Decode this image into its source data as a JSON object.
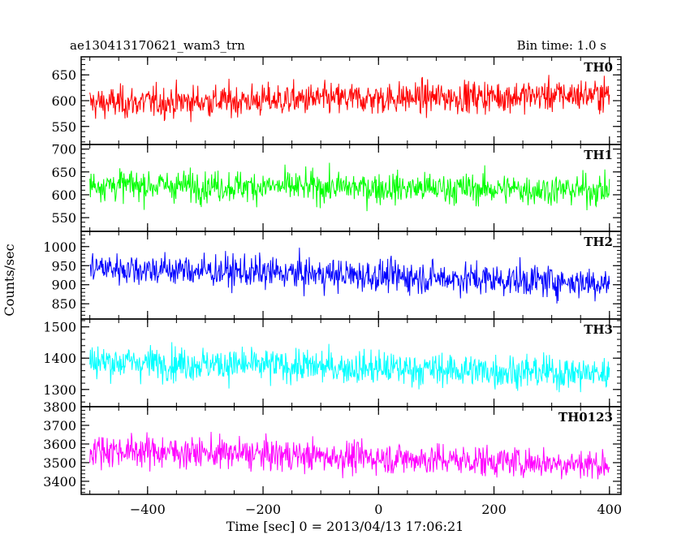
{
  "header": {
    "title": "ae130413170621_wam3_trn",
    "bin_time": "Bin time: 1.0 s"
  },
  "chart_data": {
    "type": "line",
    "title": "ae130413170621_wam3_trn",
    "subtitle": "Bin time: 1.0 s",
    "xlabel": "Time [sec] 0 = 2013/04/13 17:06:21",
    "ylabel": "Counts/sec",
    "xlim": [
      -515,
      420
    ],
    "x_ticks": [
      -400,
      -200,
      0,
      200,
      400
    ],
    "x_tick_labels": [
      "−400",
      "−200",
      "0",
      "200",
      "400"
    ],
    "x_range": [
      -500,
      400
    ],
    "bin_seconds": 1,
    "grid": false,
    "panels": [
      {
        "name": "TH0",
        "color": "#ff0000",
        "ylim": [
          515,
          685
        ],
        "ticks": [
          550,
          600,
          650
        ],
        "mean_start": 595,
        "mean_end": 612,
        "noise": 22
      },
      {
        "name": "TH1",
        "color": "#00ff00",
        "ylim": [
          520,
          710
        ],
        "ticks": [
          550,
          600,
          650,
          700
        ],
        "mean_start": 622,
        "mean_end": 610,
        "noise": 24
      },
      {
        "name": "TH2",
        "color": "#0000ff",
        "ylim": [
          810,
          1040
        ],
        "ticks": [
          850,
          900,
          950,
          1000
        ],
        "mean_start": 945,
        "mean_end": 905,
        "noise": 30
      },
      {
        "name": "TH3",
        "color": "#00ffff",
        "ylim": [
          1245,
          1525
        ],
        "ticks": [
          1300,
          1400,
          1500
        ],
        "mean_start": 1390,
        "mean_end": 1350,
        "noise": 38
      },
      {
        "name": "TH0123",
        "color": "#ff00ff",
        "ylim": [
          3330,
          3800
        ],
        "ticks": [
          3400,
          3500,
          3600,
          3700,
          3800
        ],
        "mean_start": 3570,
        "mean_end": 3490,
        "noise": 60
      }
    ]
  }
}
